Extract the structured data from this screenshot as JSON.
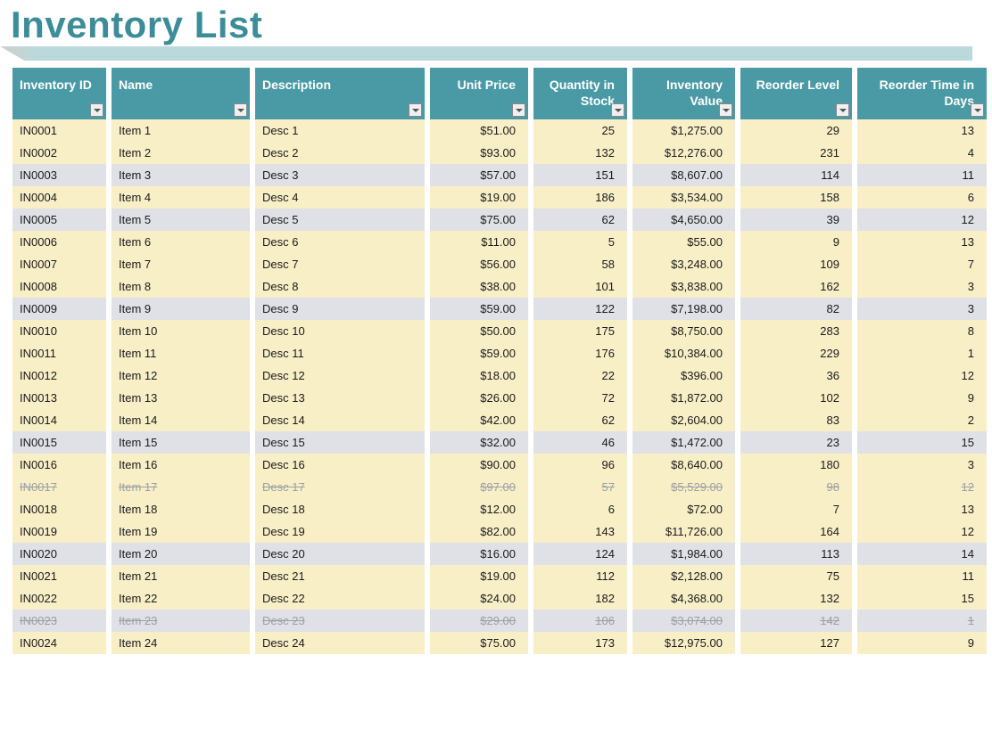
{
  "title": "Inventory List",
  "colors": {
    "title": "#3d8d99",
    "header_bg": "#4a9aa5",
    "header_fg": "#ffffff",
    "band_yellow": "#f9efc7",
    "band_gray": "#dfe1e6",
    "discontinued_fg": "#9aa0a6",
    "ribbon": "#b9d9da"
  },
  "columns": [
    {
      "key": "id",
      "label": "Inventory ID",
      "align": "left",
      "width": 105
    },
    {
      "key": "name",
      "label": "Name",
      "align": "left",
      "width": 155
    },
    {
      "key": "desc",
      "label": "Description",
      "align": "left",
      "width": 190
    },
    {
      "key": "price",
      "label": "Unit Price",
      "align": "right",
      "width": 110
    },
    {
      "key": "qty",
      "label": "Quantity in Stock",
      "align": "right",
      "width": 105
    },
    {
      "key": "value",
      "label": "Inventory Value",
      "align": "right",
      "width": 115
    },
    {
      "key": "reorder",
      "label": "Reorder Level",
      "align": "right",
      "width": 125
    },
    {
      "key": "days",
      "label": "Reorder Time in Days",
      "align": "right",
      "width": 145
    }
  ],
  "rows": [
    {
      "id": "IN0001",
      "name": "Item 1",
      "desc": "Desc 1",
      "price": "$51.00",
      "qty": "25",
      "value": "$1,275.00",
      "reorder": "29",
      "days": "13",
      "band": "yellow",
      "discontinued": false
    },
    {
      "id": "IN0002",
      "name": "Item 2",
      "desc": "Desc 2",
      "price": "$93.00",
      "qty": "132",
      "value": "$12,276.00",
      "reorder": "231",
      "days": "4",
      "band": "yellow",
      "discontinued": false
    },
    {
      "id": "IN0003",
      "name": "Item 3",
      "desc": "Desc 3",
      "price": "$57.00",
      "qty": "151",
      "value": "$8,607.00",
      "reorder": "114",
      "days": "11",
      "band": "gray",
      "discontinued": false
    },
    {
      "id": "IN0004",
      "name": "Item 4",
      "desc": "Desc 4",
      "price": "$19.00",
      "qty": "186",
      "value": "$3,534.00",
      "reorder": "158",
      "days": "6",
      "band": "yellow",
      "discontinued": false
    },
    {
      "id": "IN0005",
      "name": "Item 5",
      "desc": "Desc 5",
      "price": "$75.00",
      "qty": "62",
      "value": "$4,650.00",
      "reorder": "39",
      "days": "12",
      "band": "gray",
      "discontinued": false
    },
    {
      "id": "IN0006",
      "name": "Item 6",
      "desc": "Desc 6",
      "price": "$11.00",
      "qty": "5",
      "value": "$55.00",
      "reorder": "9",
      "days": "13",
      "band": "yellow",
      "discontinued": false
    },
    {
      "id": "IN0007",
      "name": "Item 7",
      "desc": "Desc 7",
      "price": "$56.00",
      "qty": "58",
      "value": "$3,248.00",
      "reorder": "109",
      "days": "7",
      "band": "yellow",
      "discontinued": false
    },
    {
      "id": "IN0008",
      "name": "Item 8",
      "desc": "Desc 8",
      "price": "$38.00",
      "qty": "101",
      "value": "$3,838.00",
      "reorder": "162",
      "days": "3",
      "band": "yellow",
      "discontinued": false
    },
    {
      "id": "IN0009",
      "name": "Item 9",
      "desc": "Desc 9",
      "price": "$59.00",
      "qty": "122",
      "value": "$7,198.00",
      "reorder": "82",
      "days": "3",
      "band": "gray",
      "discontinued": false
    },
    {
      "id": "IN0010",
      "name": "Item 10",
      "desc": "Desc 10",
      "price": "$50.00",
      "qty": "175",
      "value": "$8,750.00",
      "reorder": "283",
      "days": "8",
      "band": "yellow",
      "discontinued": false
    },
    {
      "id": "IN0011",
      "name": "Item 11",
      "desc": "Desc 11",
      "price": "$59.00",
      "qty": "176",
      "value": "$10,384.00",
      "reorder": "229",
      "days": "1",
      "band": "yellow",
      "discontinued": false
    },
    {
      "id": "IN0012",
      "name": "Item 12",
      "desc": "Desc 12",
      "price": "$18.00",
      "qty": "22",
      "value": "$396.00",
      "reorder": "36",
      "days": "12",
      "band": "yellow",
      "discontinued": false
    },
    {
      "id": "IN0013",
      "name": "Item 13",
      "desc": "Desc 13",
      "price": "$26.00",
      "qty": "72",
      "value": "$1,872.00",
      "reorder": "102",
      "days": "9",
      "band": "yellow",
      "discontinued": false
    },
    {
      "id": "IN0014",
      "name": "Item 14",
      "desc": "Desc 14",
      "price": "$42.00",
      "qty": "62",
      "value": "$2,604.00",
      "reorder": "83",
      "days": "2",
      "band": "yellow",
      "discontinued": false
    },
    {
      "id": "IN0015",
      "name": "Item 15",
      "desc": "Desc 15",
      "price": "$32.00",
      "qty": "46",
      "value": "$1,472.00",
      "reorder": "23",
      "days": "15",
      "band": "gray",
      "discontinued": false
    },
    {
      "id": "IN0016",
      "name": "Item 16",
      "desc": "Desc 16",
      "price": "$90.00",
      "qty": "96",
      "value": "$8,640.00",
      "reorder": "180",
      "days": "3",
      "band": "yellow",
      "discontinued": false
    },
    {
      "id": "IN0017",
      "name": "Item 17",
      "desc": "Desc 17",
      "price": "$97.00",
      "qty": "57",
      "value": "$5,529.00",
      "reorder": "98",
      "days": "12",
      "band": "yellow",
      "discontinued": true
    },
    {
      "id": "IN0018",
      "name": "Item 18",
      "desc": "Desc 18",
      "price": "$12.00",
      "qty": "6",
      "value": "$72.00",
      "reorder": "7",
      "days": "13",
      "band": "yellow",
      "discontinued": false
    },
    {
      "id": "IN0019",
      "name": "Item 19",
      "desc": "Desc 19",
      "price": "$82.00",
      "qty": "143",
      "value": "$11,726.00",
      "reorder": "164",
      "days": "12",
      "band": "yellow",
      "discontinued": false
    },
    {
      "id": "IN0020",
      "name": "Item 20",
      "desc": "Desc 20",
      "price": "$16.00",
      "qty": "124",
      "value": "$1,984.00",
      "reorder": "113",
      "days": "14",
      "band": "gray",
      "discontinued": false
    },
    {
      "id": "IN0021",
      "name": "Item 21",
      "desc": "Desc 21",
      "price": "$19.00",
      "qty": "112",
      "value": "$2,128.00",
      "reorder": "75",
      "days": "11",
      "band": "yellow",
      "discontinued": false
    },
    {
      "id": "IN0022",
      "name": "Item 22",
      "desc": "Desc 22",
      "price": "$24.00",
      "qty": "182",
      "value": "$4,368.00",
      "reorder": "132",
      "days": "15",
      "band": "yellow",
      "discontinued": false
    },
    {
      "id": "IN0023",
      "name": "Item 23",
      "desc": "Desc 23",
      "price": "$29.00",
      "qty": "106",
      "value": "$3,074.00",
      "reorder": "142",
      "days": "1",
      "band": "gray",
      "discontinued": true
    },
    {
      "id": "IN0024",
      "name": "Item 24",
      "desc": "Desc 24",
      "price": "$75.00",
      "qty": "173",
      "value": "$12,975.00",
      "reorder": "127",
      "days": "9",
      "band": "yellow",
      "discontinued": false
    }
  ]
}
